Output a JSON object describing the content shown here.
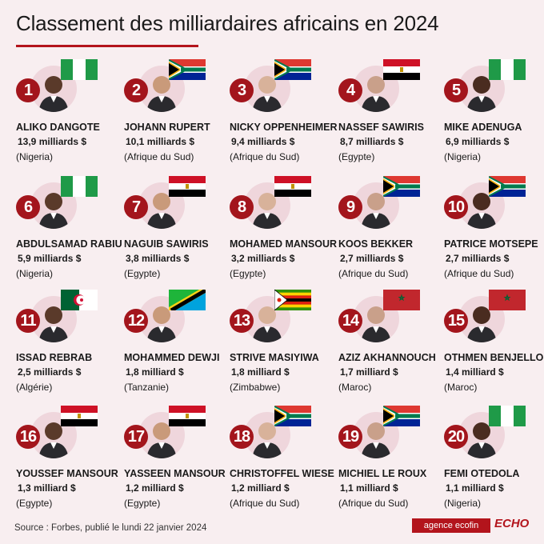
{
  "title": "Classement des milliardaires africains en 2024",
  "colors": {
    "background": "#f8eef0",
    "accent": "#a3151c",
    "portrait_bg": "#efd6dc"
  },
  "billionaires": [
    {
      "rank": "1",
      "name": "ALIKO DANGOTE",
      "amount": "13,9 milliards $",
      "country": "(Nigeria)",
      "flag": "nigeria"
    },
    {
      "rank": "2",
      "name": "JOHANN RUPERT",
      "amount": "10,1 milliards $",
      "country": "(Afrique du Sud)",
      "flag": "south-africa"
    },
    {
      "rank": "3",
      "name": "NICKY OPPENHEIMER",
      "amount": "9,4 milliards $",
      "country": "(Afrique du Sud)",
      "flag": "south-africa"
    },
    {
      "rank": "4",
      "name": "NASSEF SAWIRIS",
      "amount": "8,7 milliards $",
      "country": "(Egypte)",
      "flag": "egypt"
    },
    {
      "rank": "5",
      "name": "MIKE ADENUGA",
      "amount": "6,9 milliards $",
      "country": "(Nigeria)",
      "flag": "nigeria"
    },
    {
      "rank": "6",
      "name": "ABDULSAMAD RABIU",
      "amount": "5,9 milliards $",
      "country": "(Nigeria)",
      "flag": "nigeria"
    },
    {
      "rank": "7",
      "name": "NAGUIB SAWIRIS",
      "amount": "3,8 milliards $",
      "country": "(Egypte)",
      "flag": "egypt"
    },
    {
      "rank": "8",
      "name": "MOHAMED MANSOUR",
      "amount": "3,2 milliards $",
      "country": "(Egypte)",
      "flag": "egypt"
    },
    {
      "rank": "9",
      "name": "KOOS BEKKER",
      "amount": "2,7 milliards $",
      "country": "(Afrique du Sud)",
      "flag": "south-africa"
    },
    {
      "rank": "10",
      "name": "PATRICE MOTSEPE",
      "amount": "2,7 milliards $",
      "country": "(Afrique du Sud)",
      "flag": "south-africa"
    },
    {
      "rank": "11",
      "name": "ISSAD REBRAB",
      "amount": "2,5 milliards $",
      "country": "(Algérie)",
      "flag": "algeria"
    },
    {
      "rank": "12",
      "name": "MOHAMMED DEWJI",
      "amount": "1,8 milliard $",
      "country": "(Tanzanie)",
      "flag": "tanzania"
    },
    {
      "rank": "13",
      "name": "STRIVE MASIYIWA",
      "amount": "1,8 milliard $",
      "country": "(Zimbabwe)",
      "flag": "zimbabwe"
    },
    {
      "rank": "14",
      "name": "AZIZ AKHANNOUCH",
      "amount": "1,7 milliard $",
      "country": "(Maroc)",
      "flag": "morocco"
    },
    {
      "rank": "15",
      "name": "OTHMEN BENJELLOUN",
      "amount": "1,4 milliard $",
      "country": "(Maroc)",
      "flag": "morocco"
    },
    {
      "rank": "16",
      "name": "YOUSSEF MANSOUR",
      "amount": "1,3 milliard $",
      "country": "(Egypte)",
      "flag": "egypt"
    },
    {
      "rank": "17",
      "name": "YASSEEN MANSOUR",
      "amount": "1,2 milliard $",
      "country": "(Egypte)",
      "flag": "egypt"
    },
    {
      "rank": "18",
      "name": "CHRISTOFFEL WIESE",
      "amount": "1,2 milliard $",
      "country": "(Afrique du Sud)",
      "flag": "south-africa"
    },
    {
      "rank": "19",
      "name": "MICHIEL LE ROUX",
      "amount": "1,1 milliard $",
      "country": "(Afrique du Sud)",
      "flag": "south-africa"
    },
    {
      "rank": "20",
      "name": "FEMI OTEDOLA",
      "amount": "1,1 milliard $",
      "country": "(Nigeria)",
      "flag": "nigeria"
    }
  ],
  "footer": {
    "source": "Source : Forbes, publié le lundi 22 janvier 2024",
    "logo_agence": "agence ecofin",
    "logo_echo": "ECHO"
  }
}
